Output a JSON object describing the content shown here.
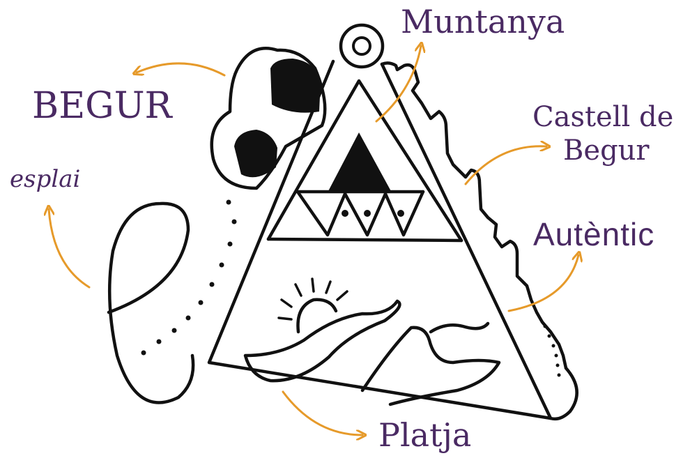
{
  "labels": {
    "muntanya": "Muntanya",
    "begur": "BEGUR",
    "castell_line1": "Castell de",
    "castell_line2": "Begur",
    "autentic": "Autèntic",
    "esplai": "esplai",
    "platja": "Platja"
  },
  "colors": {
    "text": "#4a2a63",
    "arrow": "#e69a2a",
    "ink": "#111111"
  }
}
